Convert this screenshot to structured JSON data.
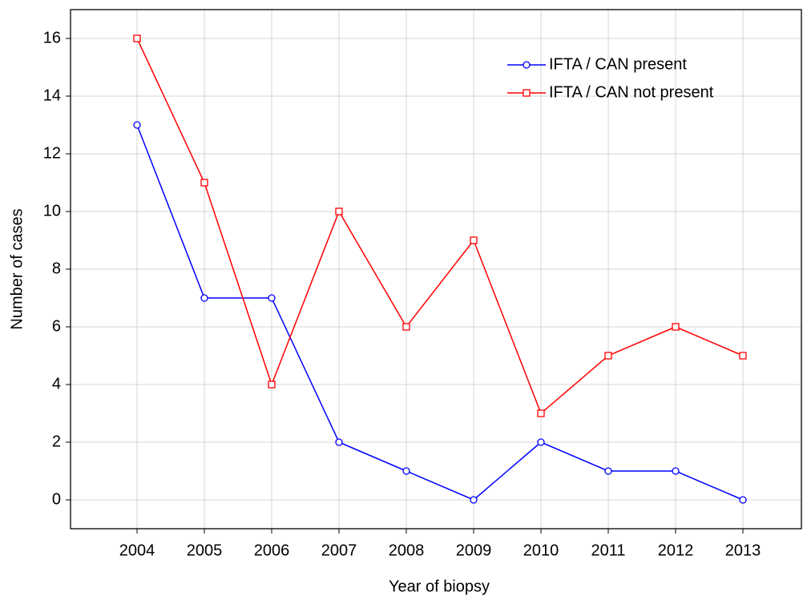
{
  "chart_data": {
    "type": "line",
    "x_label": "Year of biopsy",
    "y_label": "Number of cases",
    "categories": [
      "2004",
      "2005",
      "2006",
      "2007",
      "2008",
      "2009",
      "2010",
      "2011",
      "2012",
      "2013"
    ],
    "series": [
      {
        "name": "IFTA / CAN present",
        "color": "#0000ff",
        "marker": "circle",
        "values": [
          13,
          7,
          7,
          2,
          1,
          0,
          2,
          1,
          1,
          0
        ]
      },
      {
        "name": "IFTA / CAN not present",
        "color": "#ff0000",
        "marker": "square",
        "values": [
          16,
          11,
          4,
          10,
          6,
          9,
          3,
          5,
          6,
          5
        ]
      }
    ],
    "ylim": [
      -1,
      17
    ],
    "yticks": [
      0,
      2,
      4,
      6,
      8,
      10,
      12,
      14,
      16
    ],
    "grid": true,
    "legend": "upper right"
  }
}
